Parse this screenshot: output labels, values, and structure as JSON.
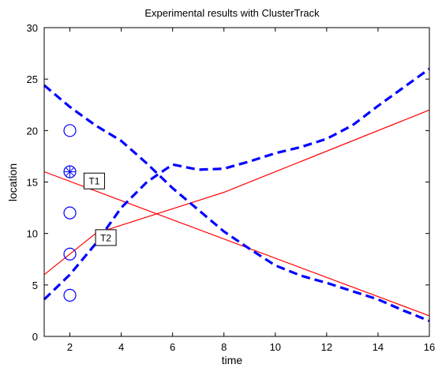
{
  "chart_data": {
    "type": "line",
    "title": "Experimental results with ClusterTrack",
    "xlabel": "time",
    "ylabel": "location",
    "xlim": [
      1,
      16
    ],
    "ylim": [
      0,
      30
    ],
    "xticks": [
      2,
      4,
      6,
      8,
      10,
      12,
      14,
      16
    ],
    "yticks": [
      0,
      5,
      10,
      15,
      20,
      25,
      30
    ],
    "grid": false,
    "colors": {
      "dashed": "#0000ff",
      "solid": "#ff0000",
      "marker": "#0000ff"
    },
    "dashed_series": [
      {
        "x": [
          1,
          2,
          3,
          4,
          5,
          6,
          7,
          8,
          9,
          10,
          11,
          12,
          13,
          14,
          15,
          16
        ],
        "y": [
          24.4,
          22.3,
          20.5,
          19,
          16.8,
          14.4,
          12.3,
          10.2,
          8.5,
          6.9,
          5.9,
          5.2,
          4.4,
          3.6,
          2.5,
          1.5
        ]
      },
      {
        "x": [
          1,
          2,
          3,
          4,
          5,
          6,
          7,
          8,
          9,
          10,
          11,
          12,
          13,
          14,
          15,
          16
        ],
        "y": [
          3.6,
          6,
          9,
          12.5,
          15,
          16.7,
          16.2,
          16.3,
          17,
          17.8,
          18.4,
          19.2,
          20.5,
          22.4,
          24.2,
          26
        ]
      }
    ],
    "solid_series": [
      {
        "x": [
          1,
          16
        ],
        "y": [
          16,
          2
        ]
      },
      {
        "x": [
          1,
          3,
          8,
          16
        ],
        "y": [
          6,
          10,
          14,
          22
        ]
      }
    ],
    "markers": [
      {
        "x": 2,
        "y": 20,
        "style": "circle"
      },
      {
        "x": 2,
        "y": 16,
        "style": "circle-asterisk"
      },
      {
        "x": 2,
        "y": 12,
        "style": "circle"
      },
      {
        "x": 2,
        "y": 8,
        "style": "circle"
      },
      {
        "x": 2,
        "y": 4,
        "style": "circle"
      }
    ],
    "annotations": [
      {
        "text": "T1",
        "x": 2.95,
        "y": 15.1
      },
      {
        "text": "T2",
        "x": 3.4,
        "y": 9.6
      }
    ]
  }
}
